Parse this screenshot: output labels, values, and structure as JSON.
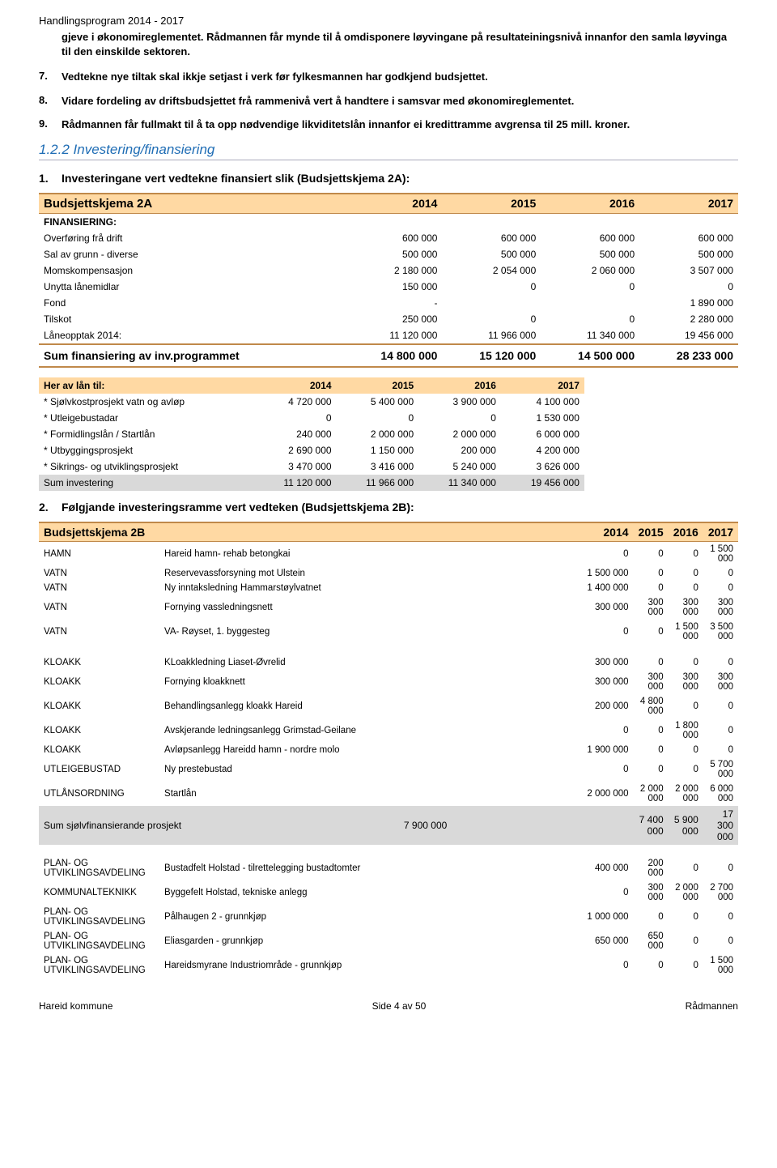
{
  "header": "Handlingsprogram 2014 - 2017",
  "intro_para": "gjeve i økonomireglementet. Rådmannen får mynde til å omdisponere løyvingane på resultateiningsnivå innanfor den samla løyvinga til den einskilde sektoren.",
  "list_items": [
    {
      "n": "7.",
      "t": "Vedtekne nye tiltak skal ikkje setjast i verk før fylkesmannen har godkjend budsjettet."
    },
    {
      "n": "8.",
      "t": "Vidare fordeling av driftsbudsjettet frå rammenivå vert å handtere i samsvar med økonomireglementet."
    },
    {
      "n": "9.",
      "t": "Rådmannen får fullmakt til å ta opp nødvendige likviditetslån innanfor ei kredittramme avgrensa til 25 mill. kroner."
    }
  ],
  "section_heading": "1.2.2  Investering/finansiering",
  "item1": {
    "n": "1.",
    "t": "Investeringane vert vedtekne finansiert slik (Budsjettskjema 2A):"
  },
  "t2a": {
    "title": "Budsjettskjema 2A",
    "years": [
      "2014",
      "2015",
      "2016",
      "2017"
    ],
    "subhead": "FINANSIERING:",
    "rows": [
      {
        "label": "Overføring frå drift",
        "v": [
          "600 000",
          "600 000",
          "600 000",
          "600 000"
        ]
      },
      {
        "label": "Sal av grunn - diverse",
        "v": [
          "500 000",
          "500 000",
          "500 000",
          "500 000"
        ]
      },
      {
        "label": "Momskompensasjon",
        "v": [
          "2 180 000",
          "2 054 000",
          "2 060 000",
          "3 507 000"
        ]
      },
      {
        "label": "Unytta lånemidlar",
        "v": [
          "150 000",
          "0",
          "0",
          "0"
        ]
      },
      {
        "label": "Fond",
        "v": [
          "-",
          "",
          "",
          "1 890 000"
        ]
      },
      {
        "label": "Tilskot",
        "v": [
          "250 000",
          "0",
          "0",
          "2 280 000"
        ]
      },
      {
        "label": "Låneopptak 2014:",
        "v": [
          "11 120 000",
          "11 966 000",
          "11 340 000",
          "19 456 000"
        ]
      }
    ],
    "total": {
      "label": "Sum finansiering  av inv.programmet",
      "v": [
        "14 800 000",
        "15 120 000",
        "14 500 000",
        "28 233 000"
      ]
    }
  },
  "loan": {
    "title": "Her av lån til:",
    "years": [
      "2014",
      "2015",
      "2016",
      "2017"
    ],
    "rows": [
      {
        "label": "* Sjølvkostprosjekt vatn og avløp",
        "v": [
          "4 720 000",
          "5 400 000",
          "3 900 000",
          "4 100 000"
        ]
      },
      {
        "label": "*   Utleigebustadar",
        "v": [
          "0",
          "0",
          "0",
          "1 530 000"
        ]
      },
      {
        "label": "* Formidlingslån / Startlån",
        "v": [
          "240 000",
          "2 000 000",
          "2 000 000",
          "6 000 000"
        ]
      },
      {
        "label": "* Utbyggingsprosjekt",
        "v": [
          "2 690 000",
          "1 150 000",
          "200 000",
          "4 200 000"
        ]
      },
      {
        "label": "* Sikrings- og utviklingsprosjekt",
        "v": [
          "3 470 000",
          "3 416 000",
          "5 240 000",
          "3 626 000"
        ]
      }
    ],
    "total": {
      "label": "Sum investering",
      "v": [
        "11 120 000",
        "11 966 000",
        "11 340 000",
        "19 456 000"
      ]
    }
  },
  "item2": {
    "n": "2.",
    "t": "Følgjande investeringsramme vert vedteken (Budsjettskjema 2B):"
  },
  "t2b": {
    "title": "Budsjettskjema 2B",
    "years": [
      "2014",
      "2015",
      "2016",
      "2017"
    ],
    "block1": [
      {
        "cat": "HAMN",
        "desc": "Hareid hamn- rehab betongkai",
        "v": [
          "0",
          "0",
          "0",
          "1 500 000"
        ]
      },
      {
        "cat": "VATN",
        "desc": "Reservevassforsyning mot Ulstein",
        "v": [
          "1 500 000",
          "0",
          "0",
          "0"
        ]
      },
      {
        "cat": "VATN",
        "desc": "Ny inntaksledning Hammarstøylvatnet",
        "v": [
          "1 400 000",
          "0",
          "0",
          "0"
        ]
      },
      {
        "cat": "VATN",
        "desc": "Fornying vassledningsnett",
        "v": [
          "300 000",
          "300 000",
          "300 000",
          "300 000"
        ]
      },
      {
        "cat": "VATN",
        "desc": "VA- Røyset, 1. byggesteg",
        "v": [
          "0",
          "0",
          "1 500 000",
          "3 500 000"
        ]
      }
    ],
    "block2": [
      {
        "cat": "KLOAKK",
        "desc": "KLoakkledning Liaset-Øvrelid",
        "v": [
          "300 000",
          "0",
          "0",
          "0"
        ]
      },
      {
        "cat": "KLOAKK",
        "desc": "Fornying kloakknett",
        "v": [
          "300 000",
          "300 000",
          "300 000",
          "300 000"
        ]
      },
      {
        "cat": "KLOAKK",
        "desc": "Behandlingsanlegg kloakk Hareid",
        "v": [
          "200 000",
          "4 800 000",
          "0",
          "0"
        ]
      },
      {
        "cat": "KLOAKK",
        "desc": "Avskjerande ledningsanlegg Grimstad-Geilane",
        "v": [
          "0",
          "0",
          "1 800 000",
          "0"
        ]
      },
      {
        "cat": "KLOAKK",
        "desc": "Avløpsanlegg Hareidd hamn - nordre molo",
        "v": [
          "1 900 000",
          "0",
          "0",
          "0"
        ]
      },
      {
        "cat": "UTLEIGEBUSTAD",
        "desc": "Ny prestebustad",
        "v": [
          "0",
          "0",
          "0",
          "5 700 000"
        ]
      },
      {
        "cat": "UTLÅNSORDNING",
        "desc": "Startlån",
        "v": [
          "2 000 000",
          "2 000 000",
          "2 000 000",
          "6 000 000"
        ]
      }
    ],
    "sum2": {
      "label": "Sum sjølvfinansierande prosjekt",
      "v": [
        "7 900 000",
        "7 400 000",
        "5 900 000",
        "17 300 000"
      ]
    },
    "block3": [
      {
        "cat": "PLAN- OG UTVIKLINGSAVDELING",
        "desc": "Bustadfelt Holstad - tilrettelegging bustadtomter",
        "v": [
          "400 000",
          "200 000",
          "0",
          "0"
        ]
      },
      {
        "cat": "KOMMUNALTEKNIKK",
        "desc": "Byggefelt Holstad, tekniske anlegg",
        "v": [
          "0",
          "300 000",
          "2 000 000",
          "2 700 000"
        ]
      },
      {
        "cat": "PLAN- OG UTVIKLINGSAVDELING",
        "desc": "Pålhaugen 2 - grunnkjøp",
        "v": [
          "1 000 000",
          "0",
          "0",
          "0"
        ]
      },
      {
        "cat": "PLAN- OG UTVIKLINGSAVDELING",
        "desc": "Eliasgarden - grunnkjøp",
        "v": [
          "650 000",
          "650 000",
          "0",
          "0"
        ]
      },
      {
        "cat": "PLAN- OG UTVIKLINGSAVDELING",
        "desc": "Hareidsmyrane Industriområde - grunnkjøp",
        "v": [
          "0",
          "0",
          "0",
          "1 500 000"
        ]
      }
    ]
  },
  "footer": {
    "left": "Hareid kommune",
    "center": "Side 4 av 50",
    "right": "Rådmannen"
  }
}
